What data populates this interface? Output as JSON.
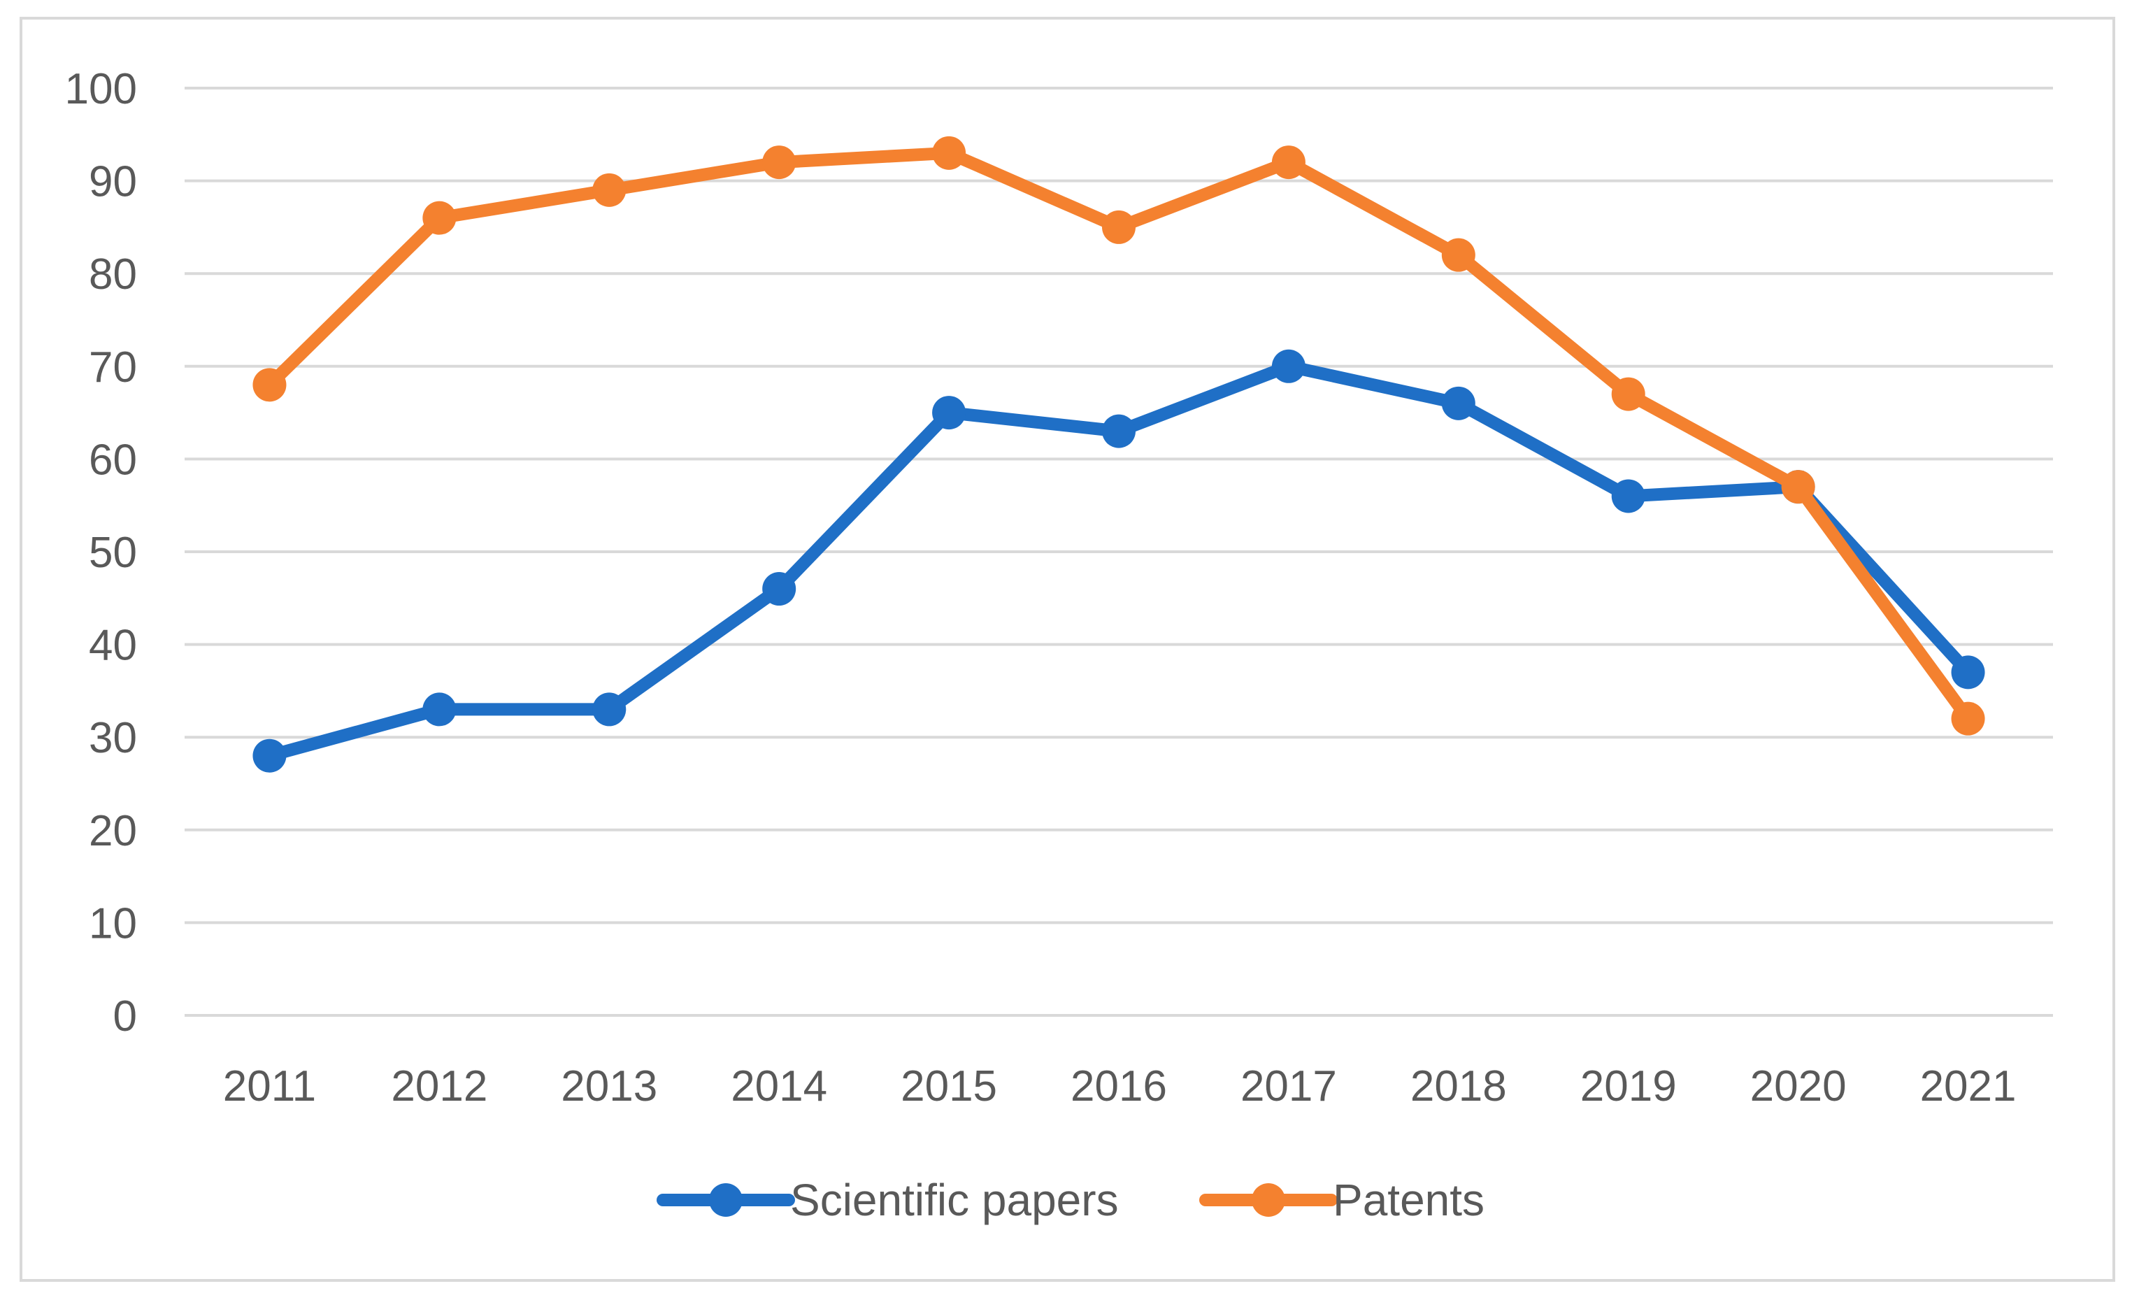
{
  "chart_data": {
    "type": "line",
    "title": "",
    "xlabel": "",
    "ylabel": "",
    "categories": [
      "2011",
      "2012",
      "2013",
      "2014",
      "2015",
      "2016",
      "2017",
      "2018",
      "2019",
      "2020",
      "2021"
    ],
    "ylim": [
      0,
      100
    ],
    "yticks": [
      "0",
      "10",
      "20",
      "30",
      "40",
      "50",
      "60",
      "70",
      "80",
      "90",
      "100"
    ],
    "grid": true,
    "legend_position": "bottom",
    "series": [
      {
        "name": "Scientific papers",
        "color": "#1f6fc6",
        "values": [
          28,
          33,
          33,
          46,
          65,
          63,
          70,
          66,
          56,
          57,
          37
        ]
      },
      {
        "name": "Patents",
        "color": "#f4812f",
        "values": [
          68,
          86,
          89,
          92,
          93,
          85,
          92,
          82,
          67,
          57,
          32
        ]
      }
    ],
    "colors": {
      "grid": "#d9d9d9",
      "text": "#595959"
    }
  }
}
